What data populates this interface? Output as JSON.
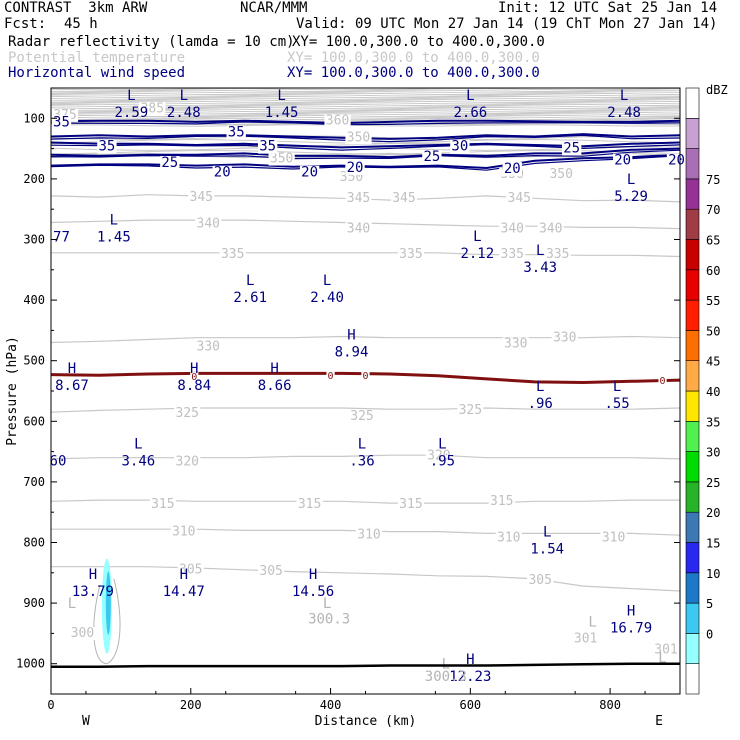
{
  "header": {
    "model": "CONTRAST  3km ARW",
    "org": "NCAR/MMM",
    "init": "Init: 12 UTC Sat 25 Jan 14",
    "fcst_label": "Fcst:",
    "fcst_value": "45 h",
    "valid": "Valid: 09 UTC Mon 27 Jan 14 (19 ChT Mon 27 Jan 14)",
    "fields": [
      {
        "name": "Radar reflectivity (lamda = 10 cm)",
        "xy": "XY= 100.0,300.0 to 400.0,300.0",
        "color": "#000000"
      },
      {
        "name": "Potential temperature",
        "xy": "XY= 100.0,300.0 to 400.0,300.0",
        "color": "#c8c8c8"
      },
      {
        "name": "Horizontal wind speed",
        "xy": "XY= 100.0,300.0 to 400.0,300.0",
        "color": "#000080"
      }
    ]
  },
  "chart_data": {
    "type": "cross-section",
    "xlabel": "Distance (km)",
    "ylabel": "Pressure (hPa)",
    "xlim": [
      0,
      900
    ],
    "ylim": [
      1050,
      50
    ],
    "x_ticks": [
      0,
      200,
      400,
      600,
      800
    ],
    "y_ticks": [
      100,
      200,
      300,
      400,
      500,
      600,
      700,
      800,
      900,
      1000
    ],
    "left_end": "W",
    "right_end": "E",
    "colorbar": {
      "title": "dBZ",
      "levels": [
        "0",
        "5",
        "10",
        "15",
        "20",
        "25",
        "30",
        "35",
        "40",
        "45",
        "50",
        "55",
        "60",
        "65",
        "70",
        "75"
      ],
      "colors": [
        "#ffffff",
        "#96ffff",
        "#3cc8f0",
        "#1e78c8",
        "#2828f0",
        "#3c78b4",
        "#28b428",
        "#00dc00",
        "#50f050",
        "#ffe600",
        "#ffaa46",
        "#ff6e00",
        "#ff1e00",
        "#e60000",
        "#c80000",
        "#a03c46",
        "#963296",
        "#aa6eb4",
        "#c8a0d2",
        "#ffffff"
      ]
    },
    "theta_contours": [
      {
        "label": "350",
        "p": [
          165,
          160,
          158,
          162,
          165,
          160,
          160,
          158,
          162,
          165,
          163,
          160,
          158,
          162
        ]
      },
      {
        "label": "345",
        "p": [
          228,
          230,
          226,
          228,
          228,
          230,
          232,
          235,
          232,
          228,
          232,
          236,
          235,
          238
        ]
      },
      {
        "label": "340",
        "p": [
          272,
          270,
          268,
          268,
          268,
          270,
          272,
          274,
          276,
          278,
          278,
          280,
          280,
          282
        ]
      },
      {
        "label": "335",
        "p": [
          322,
          322,
          322,
          322,
          322,
          322,
          322,
          322,
          322,
          325,
          325,
          326,
          326,
          328
        ]
      },
      {
        "label": "330",
        "p": [
          470,
          468,
          465,
          462,
          462,
          462,
          460,
          462,
          462,
          462,
          462,
          462,
          460,
          462
        ]
      },
      {
        "label": "325",
        "p": [
          585,
          582,
          580,
          578,
          578,
          578,
          578,
          580,
          580,
          578,
          580,
          580,
          580,
          578
        ]
      },
      {
        "label": "320",
        "p": [
          662,
          660,
          660,
          660,
          660,
          658,
          658,
          656,
          656,
          660,
          660,
          660,
          660,
          662
        ]
      },
      {
        "label": "315",
        "p": [
          732,
          730,
          730,
          732,
          732,
          732,
          732,
          735,
          735,
          735,
          732,
          732,
          730,
          730
        ]
      },
      {
        "label": "310",
        "p": [
          778,
          778,
          778,
          778,
          780,
          780,
          780,
          782,
          782,
          785,
          785,
          785,
          785,
          788
        ]
      },
      {
        "label": "305",
        "p": [
          840,
          840,
          840,
          842,
          845,
          848,
          850,
          852,
          855,
          856,
          860,
          872,
          876,
          880
        ]
      }
    ],
    "theta_labels": [
      {
        "text": "350",
        "x": 330,
        "p": 165
      },
      {
        "text": "350",
        "x": 430,
        "p": 195
      },
      {
        "text": "350",
        "x": 660,
        "p": 190
      },
      {
        "text": "350",
        "x": 730,
        "p": 190
      },
      {
        "text": "345",
        "x": 215,
        "p": 228
      },
      {
        "text": "345",
        "x": 440,
        "p": 230
      },
      {
        "text": "345",
        "x": 505,
        "p": 230
      },
      {
        "text": "345",
        "x": 670,
        "p": 230
      },
      {
        "text": "340",
        "x": 225,
        "p": 272
      },
      {
        "text": "340",
        "x": 440,
        "p": 280
      },
      {
        "text": "340",
        "x": 660,
        "p": 280
      },
      {
        "text": "340",
        "x": 715,
        "p": 280
      },
      {
        "text": "335",
        "x": 260,
        "p": 322
      },
      {
        "text": "335",
        "x": 515,
        "p": 322
      },
      {
        "text": "335",
        "x": 660,
        "p": 322
      },
      {
        "text": "335",
        "x": 725,
        "p": 322
      },
      {
        "text": "330",
        "x": 225,
        "p": 475
      },
      {
        "text": "330",
        "x": 665,
        "p": 470
      },
      {
        "text": "330",
        "x": 735,
        "p": 460
      },
      {
        "text": "325",
        "x": 195,
        "p": 585
      },
      {
        "text": "325",
        "x": 445,
        "p": 590
      },
      {
        "text": "325",
        "x": 600,
        "p": 580
      },
      {
        "text": "320",
        "x": 195,
        "p": 665
      },
      {
        "text": "320",
        "x": 555,
        "p": 655
      },
      {
        "text": "315",
        "x": 160,
        "p": 735
      },
      {
        "text": "315",
        "x": 370,
        "p": 735
      },
      {
        "text": "315",
        "x": 515,
        "p": 735
      },
      {
        "text": "315",
        "x": 645,
        "p": 730
      },
      {
        "text": "310",
        "x": 190,
        "p": 780
      },
      {
        "text": "310",
        "x": 455,
        "p": 785
      },
      {
        "text": "310",
        "x": 655,
        "p": 790
      },
      {
        "text": "310",
        "x": 805,
        "p": 790
      },
      {
        "text": "305",
        "x": 200,
        "p": 843
      },
      {
        "text": "305",
        "x": 315,
        "p": 845
      },
      {
        "text": "305",
        "x": 700,
        "p": 860
      },
      {
        "text": "300",
        "x": 45,
        "p": 948
      },
      {
        "text": "301",
        "x": 765,
        "p": 957
      },
      {
        "text": "301",
        "x": 880,
        "p": 975
      },
      {
        "text": "385",
        "x": 145,
        "p": 82
      },
      {
        "text": "375",
        "x": 20,
        "p": 93
      },
      {
        "text": "360",
        "x": 410,
        "p": 102
      },
      {
        "text": "350",
        "x": 440,
        "p": 130
      }
    ],
    "wind_contours": [
      {
        "label": "35",
        "p": [
          105,
          104,
          104,
          106,
          104,
          106,
          108,
          106,
          104,
          104,
          105,
          106,
          106,
          104
        ]
      },
      {
        "label": "35",
        "p": [
          130,
          128,
          130,
          128,
          128,
          130,
          132,
          134,
          132,
          128,
          130,
          126,
          130,
          128
        ]
      },
      {
        "label": "30",
        "p": [
          140,
          142,
          142,
          144,
          142,
          145,
          148,
          146,
          144,
          142,
          144,
          146,
          142,
          140
        ]
      },
      {
        "label": "25",
        "p": [
          160,
          162,
          160,
          160,
          158,
          162,
          162,
          164,
          160,
          162,
          158,
          158,
          152,
          150
        ]
      },
      {
        "label": "20",
        "p": [
          178,
          176,
          176,
          178,
          176,
          180,
          178,
          180,
          178,
          182,
          170,
          166,
          164,
          160
        ]
      }
    ],
    "wind_labels": [
      {
        "text": "35",
        "x": 15,
        "p": 105
      },
      {
        "text": "35",
        "x": 265,
        "p": 122
      },
      {
        "text": "35",
        "x": 80,
        "p": 145
      },
      {
        "text": "35",
        "x": 310,
        "p": 145
      },
      {
        "text": "25",
        "x": 545,
        "p": 162
      },
      {
        "text": "30",
        "x": 585,
        "p": 145
      },
      {
        "text": "25",
        "x": 745,
        "p": 148
      },
      {
        "text": "25",
        "x": 170,
        "p": 172
      },
      {
        "text": "20",
        "x": 245,
        "p": 188
      },
      {
        "text": "20",
        "x": 370,
        "p": 188
      },
      {
        "text": "20",
        "x": 435,
        "p": 180
      },
      {
        "text": "20",
        "x": 660,
        "p": 182
      },
      {
        "text": "20",
        "x": 895,
        "p": 168
      },
      {
        "text": "20",
        "x": 818,
        "p": 168
      }
    ],
    "extrema": [
      {
        "type": "L",
        "value": "2.59",
        "x": 115,
        "p": 90
      },
      {
        "type": "L",
        "value": "2.48",
        "x": 190,
        "p": 90
      },
      {
        "type": "L",
        "value": "1.45",
        "x": 330,
        "p": 90
      },
      {
        "type": "L",
        "value": "2.66",
        "x": 600,
        "p": 90
      },
      {
        "type": "L",
        "value": "2.48",
        "x": 820,
        "p": 90
      },
      {
        "type": "L",
        "value": "5.29",
        "x": 830,
        "p": 228
      },
      {
        "type": "L",
        "value": "1.45",
        "x": 90,
        "p": 295
      },
      {
        "type": "L",
        "value": "2.12",
        "x": 610,
        "p": 322
      },
      {
        "type": "L",
        "value": "3.43",
        "x": 700,
        "p": 345
      },
      {
        "type": "L",
        "value": "2.61",
        "x": 285,
        "p": 395
      },
      {
        "type": "L",
        "value": "2.40",
        "x": 395,
        "p": 395
      },
      {
        "type": "H",
        "value": "8.94",
        "x": 430,
        "p": 485
      },
      {
        "type": "H",
        "value": "8.67",
        "x": 30,
        "p": 540
      },
      {
        "type": "H",
        "value": "8.84",
        "x": 205,
        "p": 540
      },
      {
        "type": "H",
        "value": "8.66",
        "x": 320,
        "p": 540
      },
      {
        "type": "L",
        "value": ".96",
        "x": 700,
        "p": 570
      },
      {
        "type": "L",
        "value": ".55",
        "x": 810,
        "p": 570
      },
      {
        "type": "L",
        "value": "3.46",
        "x": 125,
        "p": 665
      },
      {
        "type": "L",
        "value": ".36",
        "x": 445,
        "p": 665
      },
      {
        "type": "L",
        "value": ".95",
        "x": 560,
        "p": 665
      },
      {
        "type": "L",
        "value": "1.54",
        "x": 710,
        "p": 810
      },
      {
        "type": "H",
        "value": "13.79",
        "x": 60,
        "p": 880
      },
      {
        "type": "H",
        "value": "14.47",
        "x": 190,
        "p": 880
      },
      {
        "type": "H",
        "value": "14.56",
        "x": 375,
        "p": 880
      },
      {
        "type": "H",
        "value": "12.23",
        "x": 600,
        "p": 1020
      },
      {
        "type": "H",
        "value": "16.79",
        "x": 830,
        "p": 940
      }
    ],
    "extra_values": [
      {
        "text": "77",
        "x": 15,
        "p": 295
      },
      {
        "text": "60",
        "x": 10,
        "p": 665
      }
    ],
    "zero_line": {
      "label": "0",
      "p": [
        523,
        524,
        522,
        521,
        521,
        521,
        521,
        522,
        525,
        530,
        535,
        536,
        534,
        532
      ]
    },
    "zero_labels": [
      {
        "x": 205,
        "p": 525
      },
      {
        "x": 400,
        "p": 524
      },
      {
        "x": 450,
        "p": 524
      },
      {
        "x": 875,
        "p": 532
      }
    ],
    "low_theta_labels": [
      {
        "text": "L",
        "x": 30,
        "p": 900
      },
      {
        "text": "L",
        "x": 395,
        "p": 900
      },
      {
        "text": "L",
        "x": 565,
        "p": 1000
      },
      {
        "text": "L",
        "x": 775,
        "p": 930
      },
      {
        "text": "L",
        "x": 875,
        "p": 990
      },
      {
        "text": "300.3",
        "x": 398,
        "p": 925
      },
      {
        "text": "300.3",
        "x": 565,
        "p": 1020
      }
    ],
    "terrain_p": [
      1005,
      1005,
      1004,
      1004,
      1004,
      1004,
      1004,
      1003,
      1003,
      1003,
      1002,
      1001,
      1000,
      1000
    ]
  }
}
